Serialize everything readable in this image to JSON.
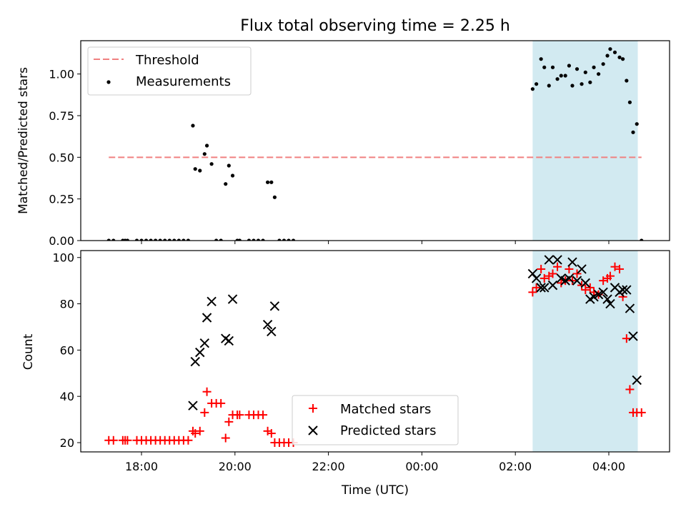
{
  "figure": {
    "title": "Flux total observing time = 2.25 h"
  },
  "chart_data": [
    {
      "type": "scatter",
      "panel": "top",
      "ylabel": "Matched/Predicted stars",
      "ylim": [
        0,
        1.2
      ],
      "yticks": [
        0.0,
        0.25,
        0.5,
        0.75,
        1.0
      ],
      "ytick_labels": [
        "0.00",
        "0.25",
        "0.50",
        "0.75",
        "1.00"
      ],
      "xlim_hours": [
        16.7,
        29.3
      ],
      "highlight_span_hours": [
        26.37,
        28.62
      ],
      "highlight_color": "#add8e6",
      "legend_position": "upper left",
      "series": [
        {
          "name": "Threshold",
          "kind": "dashed-line",
          "color": "#f08080",
          "x": [
            17.3,
            28.7
          ],
          "y": [
            0.5,
            0.5
          ]
        },
        {
          "name": "Measurements",
          "kind": "points",
          "color": "#000000",
          "x": [
            17.3,
            17.4,
            17.6,
            17.65,
            17.7,
            17.9,
            18.0,
            18.1,
            18.2,
            18.3,
            18.4,
            18.5,
            18.6,
            18.7,
            18.8,
            18.9,
            19.0,
            19.1,
            19.15,
            19.25,
            19.35,
            19.4,
            19.5,
            19.6,
            19.7,
            19.8,
            19.87,
            19.95,
            20.05,
            20.1,
            20.3,
            20.4,
            20.5,
            20.6,
            20.7,
            20.78,
            20.85,
            20.95,
            21.05,
            21.15,
            21.25,
            26.37,
            26.45,
            26.55,
            26.62,
            26.72,
            26.8,
            26.9,
            26.98,
            27.07,
            27.15,
            27.22,
            27.32,
            27.42,
            27.5,
            27.6,
            27.68,
            27.78,
            27.88,
            27.97,
            28.03,
            28.13,
            28.23,
            28.3,
            28.38,
            28.45,
            28.52,
            28.6,
            28.7
          ],
          "y": [
            0.0,
            0.0,
            0.0,
            0.0,
            0.0,
            0.0,
            0.0,
            0.0,
            0.0,
            0.0,
            0.0,
            0.0,
            0.0,
            0.0,
            0.0,
            0.0,
            0.0,
            0.69,
            0.43,
            0.42,
            0.52,
            0.57,
            0.46,
            0.0,
            0.0,
            0.34,
            0.45,
            0.39,
            0.0,
            0.0,
            0.0,
            0.0,
            0.0,
            0.0,
            0.35,
            0.35,
            0.26,
            0.0,
            0.0,
            0.0,
            0.0,
            0.91,
            0.94,
            1.09,
            1.04,
            0.93,
            1.04,
            0.97,
            0.99,
            0.99,
            1.05,
            0.93,
            1.03,
            0.94,
            1.01,
            0.95,
            1.04,
            1.0,
            1.06,
            1.11,
            1.15,
            1.13,
            1.1,
            1.09,
            0.96,
            0.83,
            0.65,
            0.7,
            0.0
          ]
        }
      ]
    },
    {
      "type": "scatter",
      "panel": "bottom",
      "xlabel": "Time (UTC)",
      "ylabel": "Count",
      "ylim": [
        16,
        103
      ],
      "yticks": [
        20,
        40,
        60,
        80,
        100
      ],
      "xticks_hours": [
        18,
        20,
        22,
        24,
        26,
        28
      ],
      "xtick_labels": [
        "18:00",
        "20:00",
        "22:00",
        "00:00",
        "02:00",
        "04:00"
      ],
      "xlim_hours": [
        16.7,
        29.3
      ],
      "highlight_span_hours": [
        26.37,
        28.62
      ],
      "highlight_color": "#add8e6",
      "legend_position": "lower center",
      "series": [
        {
          "name": "Matched stars",
          "marker": "plus",
          "color": "#ff0000",
          "x": [
            17.3,
            17.4,
            17.6,
            17.65,
            17.7,
            17.9,
            18.0,
            18.1,
            18.2,
            18.3,
            18.4,
            18.5,
            18.6,
            18.7,
            18.8,
            18.9,
            19.0,
            19.1,
            19.15,
            19.25,
            19.35,
            19.4,
            19.5,
            19.6,
            19.7,
            19.8,
            19.87,
            19.95,
            20.05,
            20.1,
            20.3,
            20.4,
            20.5,
            20.6,
            20.7,
            20.78,
            20.85,
            20.95,
            21.05,
            21.15,
            21.25,
            26.37,
            26.45,
            26.55,
            26.62,
            26.72,
            26.8,
            26.9,
            26.98,
            27.07,
            27.15,
            27.22,
            27.32,
            27.42,
            27.5,
            27.6,
            27.68,
            27.78,
            27.88,
            27.97,
            28.03,
            28.13,
            28.23,
            28.3,
            28.38,
            28.45,
            28.52,
            28.6,
            28.7
          ],
          "y": [
            21,
            21,
            21,
            21,
            21,
            21,
            21,
            21,
            21,
            21,
            21,
            21,
            21,
            21,
            21,
            21,
            21,
            25,
            24,
            25,
            33,
            42,
            37,
            37,
            37,
            22,
            29,
            32,
            32,
            32,
            32,
            32,
            32,
            32,
            25,
            24,
            20,
            20,
            20,
            20,
            20,
            85,
            87,
            95,
            91,
            92,
            93,
            96,
            89,
            90,
            95,
            90,
            93,
            88,
            86,
            87,
            85,
            84,
            90,
            91,
            92,
            96,
            95,
            83,
            65,
            43,
            33,
            33,
            33
          ]
        },
        {
          "name": "Predicted stars",
          "marker": "x",
          "color": "#000000",
          "x": [
            19.1,
            19.15,
            19.25,
            19.35,
            19.4,
            19.5,
            19.8,
            19.87,
            19.95,
            20.7,
            20.78,
            20.85,
            26.37,
            26.45,
            26.55,
            26.62,
            26.72,
            26.8,
            26.9,
            26.98,
            27.07,
            27.15,
            27.22,
            27.32,
            27.42,
            27.5,
            27.6,
            27.68,
            27.78,
            27.88,
            27.97,
            28.03,
            28.13,
            28.23,
            28.3,
            28.38,
            28.45,
            28.52,
            28.6
          ],
          "y": [
            36,
            55,
            59,
            63,
            74,
            81,
            65,
            64,
            82,
            71,
            68,
            79,
            93,
            91,
            87,
            87,
            99,
            88,
            99,
            91,
            90,
            91,
            98,
            90,
            95,
            89,
            82,
            83,
            84,
            85,
            82,
            80,
            87,
            85,
            86,
            86,
            78,
            66,
            47
          ]
        }
      ]
    }
  ]
}
